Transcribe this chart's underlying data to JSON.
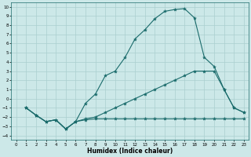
{
  "title": "",
  "xlabel": "Humidex (Indice chaleur)",
  "xlim": [
    -0.5,
    23.5
  ],
  "ylim": [
    -4.5,
    10.5
  ],
  "xticks": [
    0,
    1,
    2,
    3,
    4,
    5,
    6,
    7,
    8,
    9,
    10,
    11,
    12,
    13,
    14,
    15,
    16,
    17,
    18,
    19,
    20,
    21,
    22,
    23
  ],
  "yticks": [
    -4,
    -3,
    -2,
    -1,
    0,
    1,
    2,
    3,
    4,
    5,
    6,
    7,
    8,
    9,
    10
  ],
  "bg_color": "#cce8e8",
  "grid_color": "#aacfcf",
  "line_color": "#1a6b6b",
  "curves": [
    {
      "x": [
        1,
        2,
        3,
        4,
        5,
        6,
        7,
        8,
        9,
        10,
        11,
        12,
        13,
        14,
        15,
        16,
        17,
        18,
        19,
        20,
        21,
        22,
        23
      ],
      "y": [
        -1,
        -1.8,
        -2.5,
        -2.3,
        -3.3,
        -2.5,
        -2.3,
        -2.2,
        -2.2,
        -2.2,
        -2.2,
        -2.2,
        -2.2,
        -2.2,
        -2.2,
        -2.2,
        -2.2,
        -2.2,
        -2.2,
        -2.2,
        -2.2,
        -2.2,
        -2.2
      ]
    },
    {
      "x": [
        1,
        2,
        3,
        4,
        5,
        6,
        7,
        8,
        9,
        10,
        11,
        12,
        13,
        14,
        15,
        16,
        17,
        18,
        19,
        20,
        21,
        22,
        23
      ],
      "y": [
        -1,
        -1.8,
        -2.5,
        -2.3,
        -3.3,
        -2.5,
        -2.2,
        -2.0,
        -1.5,
        -1.0,
        -0.5,
        0.0,
        0.5,
        1.0,
        1.5,
        2.0,
        2.5,
        3.0,
        3.0,
        3.0,
        1.0,
        -1.0,
        -1.5
      ]
    },
    {
      "x": [
        1,
        2,
        3,
        4,
        5,
        6,
        7,
        8,
        9,
        10,
        11,
        12,
        13,
        14,
        15,
        16,
        17,
        18,
        19,
        20,
        21,
        22,
        23
      ],
      "y": [
        -1,
        -1.8,
        -2.5,
        -2.3,
        -3.3,
        -2.5,
        -0.5,
        0.5,
        2.5,
        3.0,
        4.5,
        6.5,
        7.5,
        8.7,
        9.5,
        9.7,
        9.8,
        8.8,
        4.5,
        3.5,
        1.0,
        -1.0,
        -1.5
      ]
    }
  ]
}
